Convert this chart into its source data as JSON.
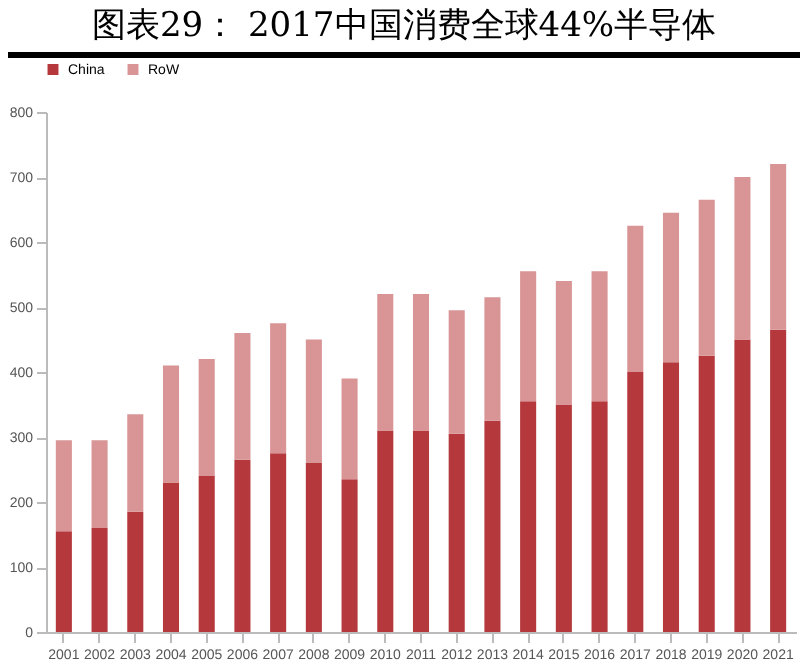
{
  "chart_data": {
    "type": "bar",
    "title": "图表29：  2017中国消费全球44%半导体",
    "stacked": true,
    "legend": "top",
    "categories": [
      "2001",
      "2002",
      "2003",
      "2004",
      "2005",
      "2006",
      "2007",
      "2008",
      "2009",
      "2010",
      "2011",
      "2012",
      "2013",
      "2014",
      "2015",
      "2016",
      "2017",
      "2018",
      "2019",
      "2020",
      "2021"
    ],
    "series": [
      {
        "name": "China",
        "color": "#b5393c",
        "values": [
          155,
          160,
          185,
          230,
          240,
          265,
          275,
          260,
          235,
          310,
          310,
          305,
          325,
          355,
          350,
          355,
          400,
          415,
          425,
          450,
          465
        ]
      },
      {
        "name": "RoW",
        "color": "#d99596",
        "values": [
          140,
          135,
          150,
          180,
          180,
          195,
          200,
          190,
          155,
          210,
          210,
          190,
          190,
          200,
          190,
          200,
          225,
          230,
          240,
          250,
          255
        ]
      }
    ],
    "ylim": [
      0,
      800
    ],
    "yticks": [
      0,
      100,
      200,
      300,
      400,
      500,
      600,
      700,
      800
    ],
    "grid": false
  }
}
